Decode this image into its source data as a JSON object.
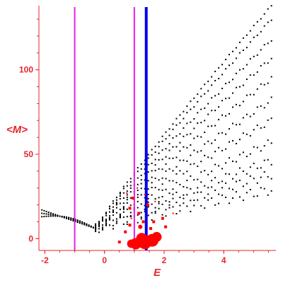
{
  "chart_data": {
    "type": "scatter",
    "xlabel": "E",
    "ylabel": "<M>",
    "xlim": [
      -2.2,
      5.75
    ],
    "ylim": [
      -7,
      138
    ],
    "xticks": [
      -2,
      0,
      2,
      4
    ],
    "xtick_labels": [
      "-2",
      "0",
      "2",
      "4"
    ],
    "yticks": [
      0,
      50,
      100
    ],
    "ytick_labels": [
      "0",
      "50",
      "100"
    ],
    "grid": false,
    "legend": "none",
    "colors": {
      "axes": "#e8242b",
      "dots": "#000000",
      "markers": "#ff0000",
      "magenta_lines": "#e61ee6",
      "blue_line": "#0000e6"
    },
    "vertical_lines": [
      {
        "x": -1.0,
        "color": "#e61ee6",
        "width": "thin"
      },
      {
        "x": 1.0,
        "color": "#e61ee6",
        "width": "thin"
      },
      {
        "x": 1.4,
        "color": "#0000e6",
        "width": "thick"
      }
    ],
    "red_markers": [
      [
        0.5,
        -2,
        2
      ],
      [
        0.9,
        -3,
        6
      ],
      [
        1.05,
        -3,
        8
      ],
      [
        1.35,
        -2,
        10
      ],
      [
        1.25,
        0,
        8
      ],
      [
        1.6,
        -1,
        9
      ],
      [
        1.75,
        1,
        7
      ],
      [
        0.7,
        4,
        2
      ],
      [
        1.2,
        7,
        3
      ],
      [
        0.85,
        8,
        2
      ],
      [
        1.55,
        6,
        2
      ],
      [
        1.3,
        10,
        2
      ],
      [
        1.65,
        10,
        2
      ],
      [
        2.05,
        7,
        2
      ],
      [
        1.15,
        15,
        2
      ],
      [
        0.85,
        18,
        2
      ],
      [
        1.45,
        20,
        2
      ],
      [
        1.95,
        12,
        2
      ],
      [
        0.95,
        24,
        2
      ],
      [
        1.7,
        22,
        1
      ],
      [
        0.75,
        27,
        1
      ],
      [
        1.35,
        26,
        1
      ],
      [
        2.3,
        15,
        1
      ],
      [
        1.1,
        30,
        1
      ],
      [
        0.9,
        12,
        1
      ]
    ],
    "dot_fan": {
      "common_start": [
        -0.3,
        6
      ],
      "x_end": 5.6,
      "y_end_values": [
        138,
        130,
        118,
        107,
        95,
        82,
        70,
        57,
        46,
        38,
        29
      ],
      "points_per_series": 50
    },
    "dot_left_arm": {
      "x_start": -2.1,
      "x_end": -0.3,
      "y_start": 17,
      "y_end": 6,
      "points_per_series": 24
    }
  }
}
